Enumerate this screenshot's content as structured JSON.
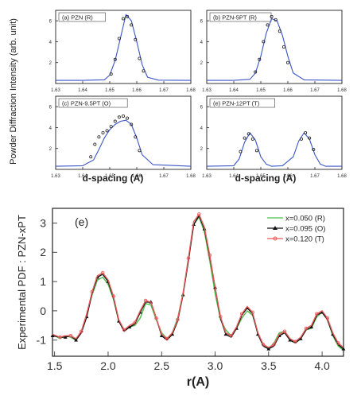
{
  "figure": {
    "top_ylabel": "Powder Diffraction Intensity (arb. unit)",
    "xlabel_left": "d-spacing (A)",
    "xlabel_right": "d-spacing (A)"
  },
  "chart_data": [
    {
      "type": "line",
      "panel_label": "(a) PZN (R)",
      "xlim": [
        1.63,
        1.68
      ],
      "ylim": [
        0,
        7
      ],
      "x_ticks": [
        "1.63",
        "1.64",
        "1.65",
        "1.66",
        "1.67",
        "1.68"
      ],
      "y_ticks": [
        "2",
        "4",
        "6"
      ],
      "x_tick_values": [
        1.63,
        1.64,
        1.65,
        1.66,
        1.67,
        1.68
      ],
      "y_tick_values": [
        2,
        4,
        6
      ],
      "series": [
        {
          "kind": "fit",
          "color": "#3a55c8",
          "x": [
            1.63,
            1.64,
            1.648,
            1.65,
            1.652,
            1.654,
            1.656,
            1.658,
            1.66,
            1.662,
            1.664,
            1.668,
            1.68
          ],
          "y": [
            0.3,
            0.3,
            0.35,
            0.8,
            2.2,
            4.4,
            6.6,
            6.0,
            4.0,
            1.8,
            0.6,
            0.32,
            0.3
          ]
        },
        {
          "kind": "data",
          "color": "#222222",
          "x": [
            1.6505,
            1.652,
            1.6535,
            1.655,
            1.6565,
            1.658,
            1.6595,
            1.661,
            1.6625
          ],
          "y": [
            0.9,
            2.3,
            4.3,
            6.2,
            6.4,
            5.6,
            4.2,
            2.4,
            1.2
          ]
        }
      ]
    },
    {
      "type": "line",
      "panel_label": "(b) PZN-5PT (R)",
      "xlim": [
        1.63,
        1.68
      ],
      "ylim": [
        0,
        7
      ],
      "x_ticks": [
        "1.63",
        "1.64",
        "1.65",
        "1.66",
        "1.67",
        "1.68"
      ],
      "y_ticks": [
        "2",
        "4",
        "6"
      ],
      "x_tick_values": [
        1.63,
        1.64,
        1.65,
        1.66,
        1.67,
        1.68
      ],
      "y_tick_values": [
        2,
        4,
        6
      ],
      "series": [
        {
          "kind": "fit",
          "color": "#3a55c8",
          "x": [
            1.63,
            1.64,
            1.646,
            1.648,
            1.65,
            1.652,
            1.654,
            1.656,
            1.658,
            1.66,
            1.662,
            1.666,
            1.68
          ],
          "y": [
            0.3,
            0.3,
            0.4,
            1.0,
            2.6,
            4.8,
            6.2,
            6.0,
            4.6,
            2.6,
            1.0,
            0.35,
            0.3
          ]
        },
        {
          "kind": "data",
          "color": "#222222",
          "x": [
            1.648,
            1.6495,
            1.651,
            1.6525,
            1.654,
            1.6555,
            1.657,
            1.6585,
            1.66
          ],
          "y": [
            1.1,
            2.3,
            4.0,
            5.6,
            6.4,
            6.1,
            5.0,
            3.5,
            2.0
          ]
        }
      ]
    },
    {
      "type": "line",
      "panel_label": "(c) PZN-9.5PT (O)",
      "xlim": [
        1.63,
        1.68
      ],
      "ylim": [
        0,
        7
      ],
      "x_ticks": [
        "1.63",
        "1.64",
        "1.65",
        "1.66",
        "1.67",
        "1.68"
      ],
      "y_ticks": [
        "2",
        "4",
        "6"
      ],
      "x_tick_values": [
        1.63,
        1.64,
        1.65,
        1.66,
        1.67,
        1.68
      ],
      "y_tick_values": [
        2,
        4,
        6
      ],
      "series": [
        {
          "kind": "fit",
          "color": "#3a55c8",
          "x": [
            1.63,
            1.64,
            1.644,
            1.646,
            1.648,
            1.65,
            1.652,
            1.654,
            1.656,
            1.658,
            1.66,
            1.662,
            1.666,
            1.68
          ],
          "y": [
            0.3,
            0.35,
            0.9,
            1.9,
            3.0,
            3.8,
            4.3,
            4.6,
            4.7,
            4.3,
            3.0,
            1.4,
            0.45,
            0.3
          ]
        },
        {
          "kind": "data",
          "color": "#222222",
          "x": [
            1.643,
            1.6445,
            1.646,
            1.6475,
            1.649,
            1.6505,
            1.652,
            1.6535,
            1.655,
            1.6565,
            1.658,
            1.6595,
            1.661
          ],
          "y": [
            1.2,
            2.4,
            3.1,
            3.5,
            3.7,
            4.1,
            4.6,
            5.0,
            5.1,
            4.9,
            4.3,
            3.1,
            1.8
          ]
        }
      ]
    },
    {
      "type": "line",
      "panel_label": "(e) PZN-12PT (T)",
      "xlim": [
        1.63,
        1.68
      ],
      "ylim": [
        0,
        7
      ],
      "x_ticks": [
        "1.63",
        "1.64",
        "1.65",
        "1.66",
        "1.67",
        "1.68"
      ],
      "y_ticks": [
        "2",
        "4",
        "6"
      ],
      "x_tick_values": [
        1.63,
        1.64,
        1.65,
        1.66,
        1.67,
        1.68
      ],
      "y_tick_values": [
        2,
        4,
        6
      ],
      "series": [
        {
          "kind": "fit",
          "color": "#3a55c8",
          "x": [
            1.63,
            1.64,
            1.642,
            1.644,
            1.646,
            1.648,
            1.65,
            1.652,
            1.654,
            1.658,
            1.662,
            1.664,
            1.666,
            1.668,
            1.67,
            1.672,
            1.674,
            1.68
          ],
          "y": [
            0.3,
            0.35,
            1.0,
            2.6,
            3.5,
            2.8,
            1.2,
            0.5,
            0.3,
            0.35,
            1.2,
            2.7,
            3.5,
            2.9,
            1.4,
            0.5,
            0.3,
            0.3
          ]
        },
        {
          "kind": "data",
          "color": "#222222",
          "x": [
            1.6425,
            1.644,
            1.6455,
            1.647,
            1.6485,
            1.665,
            1.6665,
            1.668,
            1.6695
          ],
          "y": [
            1.7,
            3.0,
            3.4,
            2.9,
            1.8,
            2.9,
            3.5,
            3.0,
            1.9
          ]
        }
      ]
    },
    {
      "type": "line",
      "panel_label": "(e)",
      "xlabel": "r(A)",
      "ylabel": "Experimental PDF : PZN-xPT",
      "xlim": [
        1.48,
        4.2
      ],
      "ylim": [
        -1.55,
        3.5
      ],
      "x_ticks": [
        "1.5",
        "2.0",
        "2.5",
        "3.0",
        "3.5",
        "4.0"
      ],
      "y_ticks": [
        "-1",
        "0",
        "1",
        "2",
        "3"
      ],
      "x_tick_values": [
        1.5,
        2.0,
        2.5,
        3.0,
        3.5,
        4.0
      ],
      "y_tick_values": [
        -1,
        0,
        1,
        2,
        3
      ],
      "legend_position": "top-right",
      "grid": false,
      "series": [
        {
          "name": "x=0.050 (R)",
          "color": "#4cbf4c",
          "marker": "none",
          "x": [
            1.48,
            1.55,
            1.6,
            1.65,
            1.7,
            1.75,
            1.8,
            1.85,
            1.9,
            1.95,
            2.0,
            2.05,
            2.1,
            2.15,
            2.2,
            2.25,
            2.3,
            2.35,
            2.4,
            2.45,
            2.5,
            2.55,
            2.6,
            2.65,
            2.7,
            2.75,
            2.8,
            2.85,
            2.9,
            2.95,
            3.0,
            3.05,
            3.1,
            3.15,
            3.2,
            3.25,
            3.3,
            3.35,
            3.4,
            3.45,
            3.5,
            3.55,
            3.6,
            3.65,
            3.7,
            3.75,
            3.8,
            3.85,
            3.9,
            3.95,
            4.0,
            4.05,
            4.1,
            4.15,
            4.2
          ],
          "y": [
            -0.8,
            -0.95,
            -0.85,
            -0.9,
            -1.0,
            -0.7,
            -0.1,
            0.55,
            1.05,
            1.15,
            0.9,
            0.4,
            -0.35,
            -0.65,
            -0.55,
            -0.5,
            -0.25,
            0.25,
            0.2,
            -0.3,
            -0.75,
            -0.95,
            -0.75,
            -0.25,
            0.6,
            1.75,
            2.95,
            3.2,
            2.7,
            1.7,
            0.6,
            -0.3,
            -0.65,
            -0.85,
            -0.6,
            -0.25,
            0.0,
            -0.15,
            -0.75,
            -1.2,
            -1.3,
            -1.1,
            -0.75,
            -0.7,
            -0.95,
            -1.1,
            -0.9,
            -0.65,
            -0.6,
            -0.2,
            -0.05,
            -0.3,
            -0.85,
            -1.2,
            -1.35
          ]
        },
        {
          "name": "x=0.095 (O)",
          "color": "#111111",
          "marker": "triangle",
          "x": [
            1.48,
            1.55,
            1.6,
            1.65,
            1.7,
            1.75,
            1.8,
            1.85,
            1.9,
            1.95,
            2.0,
            2.05,
            2.1,
            2.15,
            2.2,
            2.25,
            2.3,
            2.35,
            2.4,
            2.45,
            2.5,
            2.55,
            2.6,
            2.65,
            2.7,
            2.75,
            2.8,
            2.85,
            2.9,
            2.95,
            3.0,
            3.05,
            3.1,
            3.15,
            3.2,
            3.25,
            3.3,
            3.35,
            3.4,
            3.45,
            3.5,
            3.55,
            3.6,
            3.65,
            3.7,
            3.75,
            3.8,
            3.85,
            3.9,
            3.95,
            4.0,
            4.05,
            4.1,
            4.15,
            4.2
          ],
          "y": [
            -0.85,
            -0.9,
            -0.9,
            -0.85,
            -1.0,
            -0.75,
            -0.2,
            0.6,
            1.15,
            1.25,
            1.0,
            0.45,
            -0.35,
            -0.7,
            -0.55,
            -0.45,
            -0.05,
            0.3,
            0.3,
            -0.25,
            -0.85,
            -1.0,
            -0.8,
            -0.35,
            0.55,
            1.7,
            2.95,
            3.25,
            2.8,
            1.85,
            0.8,
            -0.25,
            -0.8,
            -0.9,
            -0.6,
            -0.15,
            0.1,
            -0.1,
            -0.8,
            -1.2,
            -1.3,
            -1.2,
            -0.85,
            -0.75,
            -1.0,
            -1.1,
            -0.95,
            -0.65,
            -0.55,
            -0.15,
            -0.05,
            -0.3,
            -0.8,
            -1.15,
            -1.3
          ]
        },
        {
          "name": "x=0.120 (T)",
          "color": "#e85a5a",
          "marker": "circle",
          "x": [
            1.48,
            1.55,
            1.6,
            1.65,
            1.7,
            1.75,
            1.8,
            1.85,
            1.9,
            1.95,
            2.0,
            2.05,
            2.1,
            2.15,
            2.2,
            2.25,
            2.3,
            2.35,
            2.4,
            2.45,
            2.5,
            2.55,
            2.6,
            2.65,
            2.7,
            2.75,
            2.8,
            2.85,
            2.9,
            2.95,
            3.0,
            3.05,
            3.1,
            3.15,
            3.2,
            3.25,
            3.3,
            3.35,
            3.4,
            3.45,
            3.5,
            3.55,
            3.6,
            3.65,
            3.7,
            3.75,
            3.8,
            3.85,
            3.9,
            3.95,
            4.0,
            4.05,
            4.1,
            4.15,
            4.2
          ],
          "y": [
            -0.8,
            -0.9,
            -0.85,
            -0.85,
            -0.95,
            -0.7,
            -0.1,
            0.65,
            1.2,
            1.3,
            1.05,
            0.5,
            -0.3,
            -0.65,
            -0.5,
            -0.4,
            0.0,
            0.35,
            0.3,
            -0.25,
            -0.8,
            -0.95,
            -0.75,
            -0.3,
            0.6,
            1.8,
            3.05,
            3.3,
            2.85,
            1.9,
            0.8,
            -0.2,
            -0.75,
            -0.85,
            -0.55,
            -0.1,
            0.15,
            -0.05,
            -0.75,
            -1.15,
            -1.25,
            -1.15,
            -0.8,
            -0.7,
            -0.95,
            -1.05,
            -0.9,
            -0.6,
            -0.5,
            -0.1,
            0.0,
            -0.25,
            -0.75,
            -1.1,
            -1.25
          ]
        }
      ]
    }
  ]
}
